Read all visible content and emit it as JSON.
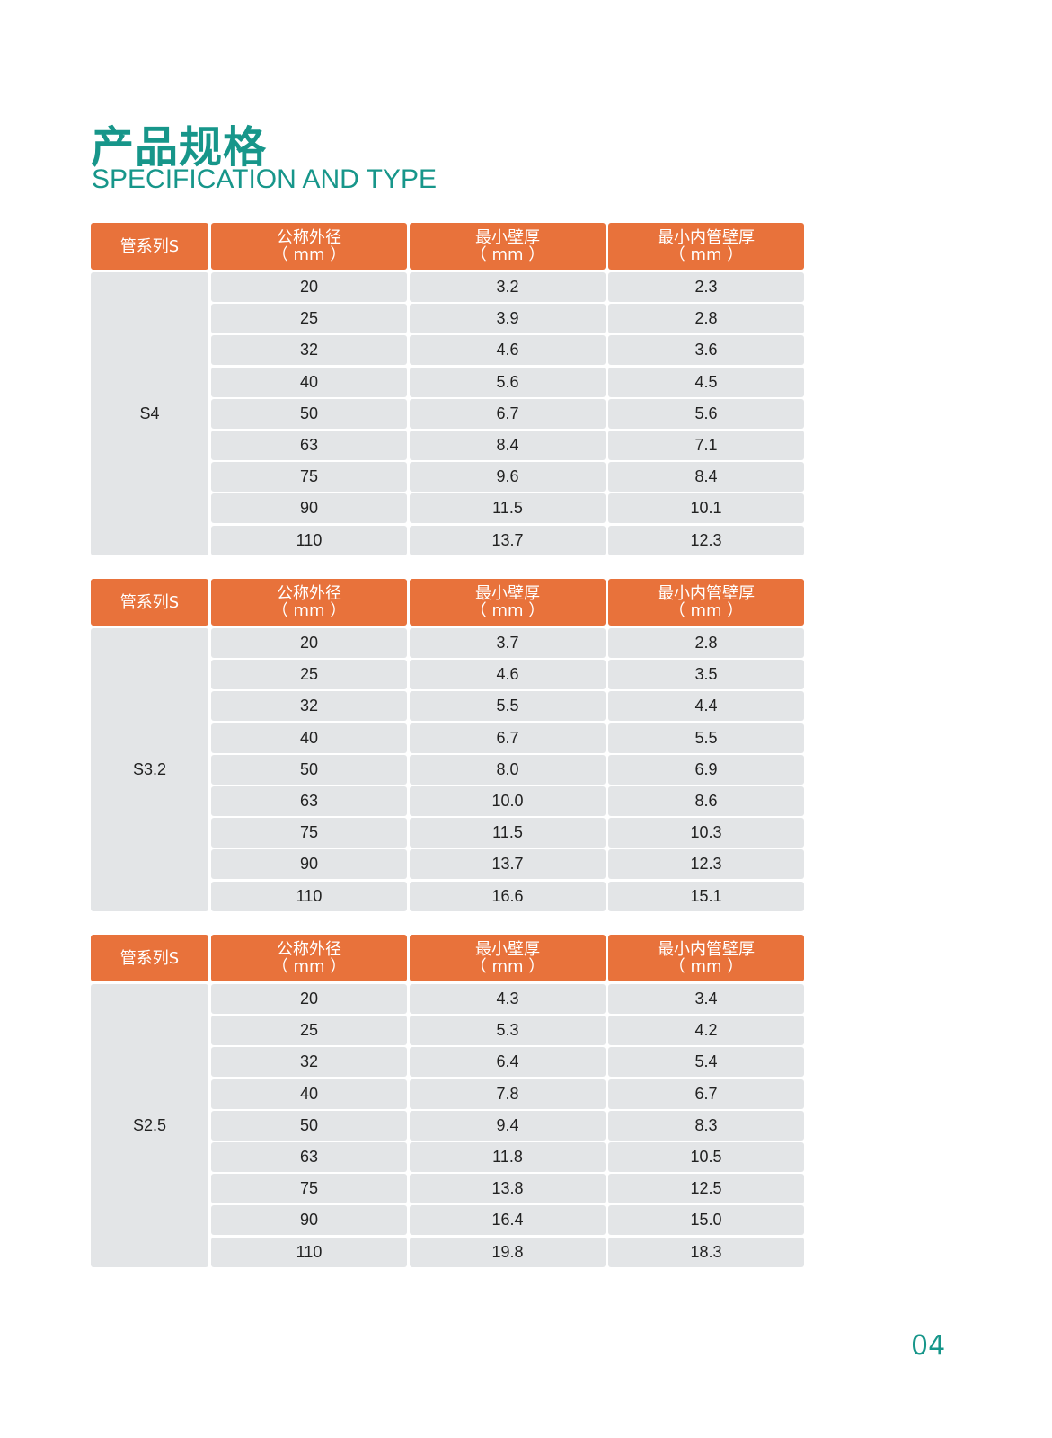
{
  "title_cn": "产品规格",
  "title_en": "SPECIFICATION AND TYPE",
  "page_number": "04",
  "colors": {
    "accent": "#17968a",
    "header": "#e8723b",
    "cell": "#e3e5e7"
  },
  "headers": [
    {
      "line1": "管系列S",
      "line2": ""
    },
    {
      "line1": "公称外径",
      "line2": "（ mm ）"
    },
    {
      "line1": "最小壁厚",
      "line2": "（ mm ）"
    },
    {
      "line1": "最小内管壁厚",
      "line2": "（ mm ）"
    }
  ],
  "tables": [
    {
      "series": "S4",
      "rows": [
        [
          "20",
          "3.2",
          "2.3"
        ],
        [
          "25",
          "3.9",
          "2.8"
        ],
        [
          "32",
          "4.6",
          "3.6"
        ],
        [
          "40",
          "5.6",
          "4.5"
        ],
        [
          "50",
          "6.7",
          "5.6"
        ],
        [
          "63",
          "8.4",
          "7.1"
        ],
        [
          "75",
          "9.6",
          "8.4"
        ],
        [
          "90",
          "11.5",
          "10.1"
        ],
        [
          "110",
          "13.7",
          "12.3"
        ]
      ]
    },
    {
      "series": "S3.2",
      "rows": [
        [
          "20",
          "3.7",
          "2.8"
        ],
        [
          "25",
          "4.6",
          "3.5"
        ],
        [
          "32",
          "5.5",
          "4.4"
        ],
        [
          "40",
          "6.7",
          "5.5"
        ],
        [
          "50",
          "8.0",
          "6.9"
        ],
        [
          "63",
          "10.0",
          "8.6"
        ],
        [
          "75",
          "11.5",
          "10.3"
        ],
        [
          "90",
          "13.7",
          "12.3"
        ],
        [
          "110",
          "16.6",
          "15.1"
        ]
      ]
    },
    {
      "series": "S2.5",
      "rows": [
        [
          "20",
          "4.3",
          "3.4"
        ],
        [
          "25",
          "5.3",
          "4.2"
        ],
        [
          "32",
          "6.4",
          "5.4"
        ],
        [
          "40",
          "7.8",
          "6.7"
        ],
        [
          "50",
          "9.4",
          "8.3"
        ],
        [
          "63",
          "11.8",
          "10.5"
        ],
        [
          "75",
          "13.8",
          "12.5"
        ],
        [
          "90",
          "16.4",
          "15.0"
        ],
        [
          "110",
          "19.8",
          "18.3"
        ]
      ]
    }
  ]
}
